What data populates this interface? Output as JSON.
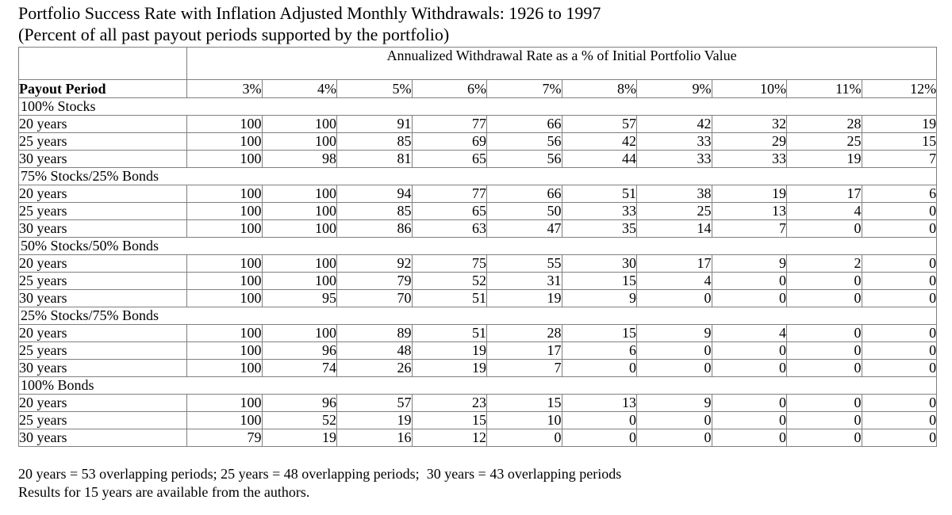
{
  "title": {
    "line1": "Portfolio Success Rate with Inflation Adjusted Monthly Withdrawals: 1926 to 1997",
    "line2": "(Percent of all past payout periods supported by the portfolio)"
  },
  "colors": {
    "background": "#ffffff",
    "text": "#000000",
    "table_border": "#7f7f7f"
  },
  "table": {
    "header_group": "Annualized Withdrawal Rate as a % of Initial Portfolio Value",
    "row_header": "Payout Period",
    "rate_columns": [
      "3%",
      "4%",
      "5%",
      "6%",
      "7%",
      "8%",
      "9%",
      "10%",
      "11%",
      "12%"
    ],
    "sections": [
      {
        "label": "100% Stocks",
        "rows": [
          {
            "label": "20 years",
            "values": [
              100,
              100,
              91,
              77,
              66,
              57,
              42,
              32,
              28,
              19
            ]
          },
          {
            "label": "25 years",
            "values": [
              100,
              100,
              85,
              69,
              56,
              42,
              33,
              29,
              25,
              15
            ]
          },
          {
            "label": "30 years",
            "values": [
              100,
              98,
              81,
              65,
              56,
              44,
              33,
              33,
              19,
              7
            ]
          }
        ]
      },
      {
        "label": "75% Stocks/25% Bonds",
        "rows": [
          {
            "label": "20 years",
            "values": [
              100,
              100,
              94,
              77,
              66,
              51,
              38,
              19,
              17,
              6
            ]
          },
          {
            "label": "25 years",
            "values": [
              100,
              100,
              85,
              65,
              50,
              33,
              25,
              13,
              4,
              0
            ]
          },
          {
            "label": "30 years",
            "values": [
              100,
              100,
              86,
              63,
              47,
              35,
              14,
              7,
              0,
              0
            ]
          }
        ]
      },
      {
        "label": "50% Stocks/50% Bonds",
        "rows": [
          {
            "label": "20 years",
            "values": [
              100,
              100,
              92,
              75,
              55,
              30,
              17,
              9,
              2,
              0
            ]
          },
          {
            "label": "25 years",
            "values": [
              100,
              100,
              79,
              52,
              31,
              15,
              4,
              0,
              0,
              0
            ]
          },
          {
            "label": "30 years",
            "values": [
              100,
              95,
              70,
              51,
              19,
              9,
              0,
              0,
              0,
              0
            ]
          }
        ]
      },
      {
        "label": "25% Stocks/75% Bonds",
        "rows": [
          {
            "label": "20 years",
            "values": [
              100,
              100,
              89,
              51,
              28,
              15,
              9,
              4,
              0,
              0
            ]
          },
          {
            "label": "25 years",
            "values": [
              100,
              96,
              48,
              19,
              17,
              6,
              0,
              0,
              0,
              0
            ]
          },
          {
            "label": "30 years",
            "values": [
              100,
              74,
              26,
              19,
              7,
              0,
              0,
              0,
              0,
              0
            ]
          }
        ]
      },
      {
        "label": "100% Bonds",
        "rows": [
          {
            "label": "20 years",
            "values": [
              100,
              96,
              57,
              23,
              15,
              13,
              9,
              0,
              0,
              0
            ]
          },
          {
            "label": "25 years",
            "values": [
              100,
              52,
              19,
              15,
              10,
              0,
              0,
              0,
              0,
              0
            ]
          },
          {
            "label": "30 years",
            "values": [
              79,
              19,
              16,
              12,
              0,
              0,
              0,
              0,
              0,
              0
            ]
          }
        ]
      }
    ]
  },
  "footnotes": [
    "20 years = 53 overlapping periods; 25 years = 48 overlapping periods;  30 years = 43 overlapping periods",
    "Results for 15 years are available from the authors."
  ],
  "chart_data": {
    "type": "table",
    "title": "Portfolio Success Rate with Inflation Adjusted Monthly Withdrawals: 1926 to 1997",
    "subtitle": "(Percent of all past payout periods supported by the portfolio)",
    "column_group_label": "Annualized Withdrawal Rate as a % of Initial Portfolio Value",
    "categories": [
      "3%",
      "4%",
      "5%",
      "6%",
      "7%",
      "8%",
      "9%",
      "10%",
      "11%",
      "12%"
    ],
    "series": [
      {
        "name": "100% Stocks - 20 years",
        "values": [
          100,
          100,
          91,
          77,
          66,
          57,
          42,
          32,
          28,
          19
        ]
      },
      {
        "name": "100% Stocks - 25 years",
        "values": [
          100,
          100,
          85,
          69,
          56,
          42,
          33,
          29,
          25,
          15
        ]
      },
      {
        "name": "100% Stocks - 30 years",
        "values": [
          100,
          98,
          81,
          65,
          56,
          44,
          33,
          33,
          19,
          7
        ]
      },
      {
        "name": "75% Stocks/25% Bonds - 20 years",
        "values": [
          100,
          100,
          94,
          77,
          66,
          51,
          38,
          19,
          17,
          6
        ]
      },
      {
        "name": "75% Stocks/25% Bonds - 25 years",
        "values": [
          100,
          100,
          85,
          65,
          50,
          33,
          25,
          13,
          4,
          0
        ]
      },
      {
        "name": "75% Stocks/25% Bonds - 30 years",
        "values": [
          100,
          100,
          86,
          63,
          47,
          35,
          14,
          7,
          0,
          0
        ]
      },
      {
        "name": "50% Stocks/50% Bonds - 20 years",
        "values": [
          100,
          100,
          92,
          75,
          55,
          30,
          17,
          9,
          2,
          0
        ]
      },
      {
        "name": "50% Stocks/50% Bonds - 25 years",
        "values": [
          100,
          100,
          79,
          52,
          31,
          15,
          4,
          0,
          0,
          0
        ]
      },
      {
        "name": "50% Stocks/50% Bonds - 30 years",
        "values": [
          100,
          95,
          70,
          51,
          19,
          9,
          0,
          0,
          0,
          0
        ]
      },
      {
        "name": "25% Stocks/75% Bonds - 20 years",
        "values": [
          100,
          100,
          89,
          51,
          28,
          15,
          9,
          4,
          0,
          0
        ]
      },
      {
        "name": "25% Stocks/75% Bonds - 25 years",
        "values": [
          100,
          96,
          48,
          19,
          17,
          6,
          0,
          0,
          0,
          0
        ]
      },
      {
        "name": "25% Stocks/75% Bonds - 30 years",
        "values": [
          100,
          74,
          26,
          19,
          7,
          0,
          0,
          0,
          0,
          0
        ]
      },
      {
        "name": "100% Bonds - 20 years",
        "values": [
          100,
          96,
          57,
          23,
          15,
          13,
          9,
          0,
          0,
          0
        ]
      },
      {
        "name": "100% Bonds - 25 years",
        "values": [
          100,
          52,
          19,
          15,
          10,
          0,
          0,
          0,
          0,
          0
        ]
      },
      {
        "name": "100% Bonds - 30 years",
        "values": [
          79,
          19,
          16,
          12,
          0,
          0,
          0,
          0,
          0,
          0
        ]
      }
    ]
  }
}
